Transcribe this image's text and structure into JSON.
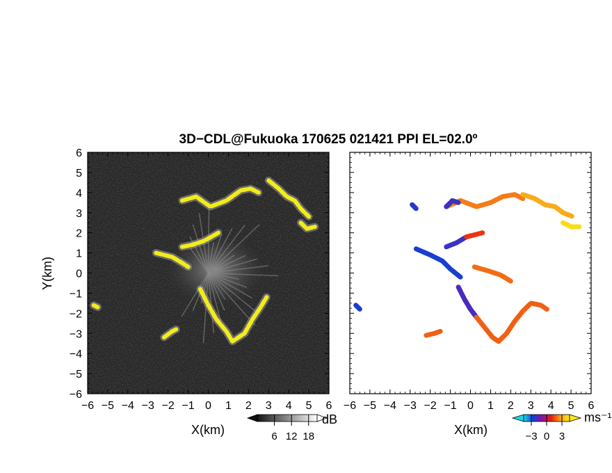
{
  "chart_data": [
    {
      "type": "heatmap",
      "title": "3D−CDL@Fukuoka 170625 021421 PPI EL=02.0º",
      "xlabel": "X(km)",
      "ylabel": "Y(km)",
      "xlim": [
        -6,
        6
      ],
      "ylim": [
        -6,
        6
      ],
      "x_ticks": [
        "−6",
        "−5",
        "−4",
        "−3",
        "−2",
        "−1",
        "0",
        "1",
        "2",
        "3",
        "4",
        "5",
        "6"
      ],
      "y_ticks": [
        "6",
        "5",
        "4",
        "3",
        "2",
        "1",
        "0",
        "−1",
        "−2",
        "−3",
        "−4",
        "−5",
        "−6"
      ],
      "background": "#282828",
      "highlight_color": "#f2ec1a",
      "colorbar": {
        "unit": "dB",
        "tick_labels": [
          "6",
          "12",
          "18"
        ],
        "tick_values": [
          6,
          12,
          18
        ],
        "range": [
          0,
          21
        ],
        "colors": [
          "#141414",
          "#ffffff"
        ]
      },
      "echo_polylines": [
        [
          [
            -1.3,
            3.6
          ],
          [
            -0.6,
            3.8
          ],
          [
            0.1,
            3.3
          ],
          [
            0.9,
            3.6
          ],
          [
            1.6,
            4.1
          ],
          [
            2.1,
            4.2
          ],
          [
            2.5,
            4.0
          ]
        ],
        [
          [
            3.0,
            4.6
          ],
          [
            3.5,
            4.2
          ],
          [
            3.9,
            3.8
          ],
          [
            4.3,
            3.6
          ],
          [
            4.6,
            3.2
          ],
          [
            5.0,
            2.8
          ]
        ],
        [
          [
            4.6,
            2.5
          ],
          [
            4.9,
            2.2
          ],
          [
            5.3,
            2.3
          ]
        ],
        [
          [
            -2.6,
            1.0
          ],
          [
            -1.8,
            0.8
          ],
          [
            -1.3,
            0.5
          ],
          [
            -1.0,
            0.3
          ]
        ],
        [
          [
            -1.3,
            1.3
          ],
          [
            -0.8,
            1.4
          ],
          [
            -0.2,
            1.6
          ],
          [
            0.5,
            2.0
          ]
        ],
        [
          [
            -0.4,
            -0.8
          ],
          [
            0.0,
            -1.6
          ],
          [
            0.4,
            -2.3
          ],
          [
            0.9,
            -2.9
          ],
          [
            1.2,
            -3.4
          ],
          [
            1.8,
            -3.0
          ],
          [
            2.2,
            -2.3
          ],
          [
            2.6,
            -1.7
          ],
          [
            2.9,
            -1.2
          ]
        ],
        [
          [
            -2.2,
            -3.2
          ],
          [
            -1.8,
            -2.9
          ],
          [
            -1.6,
            -2.8
          ]
        ],
        [
          [
            -5.7,
            -1.6
          ],
          [
            -5.5,
            -1.7
          ]
        ]
      ]
    },
    {
      "type": "heatmap",
      "xlabel": "X(km)",
      "xlim": [
        -6,
        6
      ],
      "ylim": [
        -6,
        6
      ],
      "x_ticks": [
        "−6",
        "−5",
        "−4",
        "−3",
        "−2",
        "−1",
        "0",
        "1",
        "2",
        "3",
        "4",
        "5",
        "6"
      ],
      "y_ticks": [
        "6",
        "5",
        "4",
        "3",
        "2",
        "1",
        "0",
        "−1",
        "−2",
        "−3",
        "−4",
        "−5",
        "−6"
      ],
      "background": "#ffffff",
      "colorbar": {
        "unit": "ms⁻¹",
        "tick_labels": [
          "−3",
          "0",
          "3"
        ],
        "tick_values": [
          -3,
          0,
          3
        ],
        "range": [
          -4.5,
          4.5
        ],
        "colors": [
          "#19d9e6",
          "#0a44d8",
          "#8a12a0",
          "#e8200e",
          "#f8a01a",
          "#f6e81e"
        ]
      },
      "velocity_segments": [
        {
          "v": 2.2,
          "pts": [
            [
              -1.2,
              3.3
            ],
            [
              -0.5,
              3.6
            ],
            [
              0.3,
              3.3
            ],
            [
              1.0,
              3.5
            ],
            [
              1.6,
              3.8
            ],
            [
              2.2,
              3.9
            ],
            [
              2.6,
              3.7
            ]
          ]
        },
        {
          "v": -2.0,
          "pts": [
            [
              -1.2,
              3.3
            ],
            [
              -0.9,
              3.6
            ],
            [
              -0.6,
              3.5
            ]
          ]
        },
        {
          "v": 3.0,
          "pts": [
            [
              2.6,
              3.9
            ],
            [
              3.2,
              3.7
            ],
            [
              3.7,
              3.4
            ],
            [
              4.2,
              3.3
            ],
            [
              4.6,
              3.0
            ],
            [
              5.1,
              2.8
            ]
          ]
        },
        {
          "v": 4.2,
          "pts": [
            [
              4.6,
              2.5
            ],
            [
              5.0,
              2.3
            ],
            [
              5.4,
              2.3
            ]
          ]
        },
        {
          "v": -2.5,
          "pts": [
            [
              -2.7,
              1.2
            ],
            [
              -2.0,
              0.9
            ],
            [
              -1.4,
              0.6
            ],
            [
              -1.0,
              0.2
            ],
            [
              -0.5,
              -0.2
            ]
          ]
        },
        {
          "v": -2.0,
          "pts": [
            [
              -1.2,
              1.3
            ],
            [
              -0.7,
              1.5
            ],
            [
              -0.2,
              1.8
            ]
          ]
        },
        {
          "v": 1.2,
          "pts": [
            [
              -0.2,
              1.8
            ],
            [
              0.2,
              1.9
            ],
            [
              0.6,
              2.0
            ]
          ]
        },
        {
          "v": -1.8,
          "pts": [
            [
              -0.6,
              -0.7
            ],
            [
              -0.3,
              -1.3
            ],
            [
              0.0,
              -1.8
            ],
            [
              0.3,
              -2.2
            ]
          ]
        },
        {
          "v": 1.8,
          "pts": [
            [
              0.3,
              -2.2
            ],
            [
              0.7,
              -2.7
            ],
            [
              1.1,
              -3.2
            ],
            [
              1.4,
              -3.4
            ],
            [
              1.8,
              -3.0
            ],
            [
              2.2,
              -2.4
            ],
            [
              2.6,
              -1.9
            ],
            [
              3.0,
              -1.5
            ],
            [
              3.5,
              -1.6
            ],
            [
              3.8,
              -1.8
            ]
          ]
        },
        {
          "v": 2.0,
          "pts": [
            [
              0.2,
              0.3
            ],
            [
              0.9,
              0.1
            ],
            [
              1.5,
              -0.1
            ],
            [
              2.0,
              -0.4
            ]
          ]
        },
        {
          "v": 1.8,
          "pts": [
            [
              -2.2,
              -3.1
            ],
            [
              -1.8,
              -3.0
            ],
            [
              -1.5,
              -2.9
            ]
          ]
        },
        {
          "v": -2.5,
          "pts": [
            [
              -5.7,
              -1.6
            ],
            [
              -5.5,
              -1.8
            ]
          ]
        },
        {
          "v": -2.3,
          "pts": [
            [
              -2.9,
              3.4
            ],
            [
              -2.7,
              3.2
            ]
          ]
        }
      ]
    }
  ]
}
